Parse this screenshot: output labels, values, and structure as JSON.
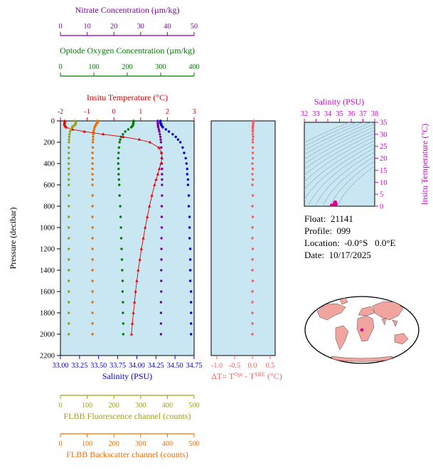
{
  "axes": {
    "nitrate": {
      "title": "Nitrate Concentration (µm/kg)",
      "ticks": [
        "0",
        "10",
        "20",
        "30",
        "40",
        "50"
      ],
      "range": [
        0,
        50
      ],
      "color": "#7f00a0"
    },
    "oxygen": {
      "title": "Optode Oxygen Concentration (µm/kg)",
      "ticks": [
        "0",
        "100",
        "200",
        "300",
        "400"
      ],
      "range": [
        0,
        400
      ],
      "color": "#007c00"
    },
    "temperature": {
      "title": "Insitu Temperature (°C)",
      "ticks": [
        "-2",
        "-1",
        "0",
        "1",
        "2",
        "3"
      ],
      "range": [
        -2,
        3
      ],
      "color": "#e80000"
    },
    "pressure": {
      "title": "Pressure (decibar)",
      "ticks": [
        "0",
        "200",
        "400",
        "600",
        "800",
        "1000",
        "1200",
        "1400",
        "1600",
        "1800",
        "2000",
        "2200"
      ],
      "range": [
        0,
        2200
      ],
      "color": "#000000"
    },
    "salinity": {
      "title": "Salinity (PSU)",
      "ticks": [
        "33.00",
        "33.25",
        "33.50",
        "33.75",
        "34.00",
        "34.25",
        "34.50",
        "34.75"
      ],
      "range": [
        33,
        34.75
      ],
      "color": "#0000cd"
    },
    "fluorescence": {
      "title": "FLBB Fluorescence channel (counts)",
      "ticks": [
        "0",
        "100",
        "200",
        "300",
        "400",
        "500"
      ],
      "range": [
        0,
        500
      ],
      "color": "#9f9f10"
    },
    "backscatter": {
      "title": "FLBB Backscatter channel (counts)",
      "ticks": [
        "0",
        "100",
        "200",
        "300",
        "400",
        "500"
      ],
      "range": [
        0,
        500
      ],
      "color": "#ef7000"
    },
    "dt": {
      "title_parts": [
        "ΔT= T",
        "Opt",
        " - T",
        "SBE",
        " (°C)"
      ],
      "ticks": [
        "-1.0",
        "-0.5",
        "0.0",
        "0.5"
      ],
      "range": [
        -1.0,
        0.5
      ],
      "color": "#f46060"
    },
    "ts_salinity": {
      "title": "Salinity (PSU)",
      "ticks": [
        "32",
        "33",
        "34",
        "35",
        "36",
        "37",
        "38"
      ],
      "range": [
        32,
        38
      ],
      "color": "#cc00cc"
    },
    "ts_temperature": {
      "title": "Insitu Temperature (°C)",
      "ticks": [
        "0",
        "5",
        "10",
        "15",
        "20",
        "25",
        "30",
        "35"
      ],
      "range": [
        0,
        35
      ],
      "color": "#cc00cc"
    }
  },
  "info": {
    "lines": [
      "Float:  21141",
      "Profile:  099",
      "Location:  -0.0°S   0.0°E",
      "Date:  10/17/2025"
    ]
  },
  "colors": {
    "plot_bg": "#c9e6f3",
    "frame": "#000000",
    "contour": "#8fb3c6",
    "ts_dots": "#dd0090",
    "land": "#f2a49e",
    "ocean": "#ffffff"
  },
  "chart_data": [
    {
      "type": "line",
      "title": "Vertical profiles vs pressure",
      "ylabel": "Pressure (decibar)",
      "ylim": [
        0,
        2200
      ],
      "pressure": [
        0,
        10,
        20,
        30,
        40,
        50,
        60,
        80,
        100,
        125,
        150,
        175,
        200,
        250,
        300,
        350,
        400,
        450,
        500,
        550,
        600,
        700,
        800,
        900,
        1000,
        1100,
        1200,
        1300,
        1400,
        1500,
        1600,
        1700,
        1800,
        1900,
        2000
      ],
      "series": [
        {
          "name": "nitrate",
          "axis": "nitrate",
          "marker": "circle",
          "xlim": [
            0,
            50
          ],
          "values": [
            36.4,
            36.4,
            36.4,
            36.5,
            36.5,
            36.5,
            36.6,
            36.8,
            37.0,
            37.2,
            37.4,
            37.5,
            37.6,
            37.7,
            37.8,
            37.9,
            37.9,
            38.0,
            38.0,
            38.0,
            38.0,
            38.0,
            37.9,
            37.9,
            37.9,
            37.8,
            37.8,
            37.8,
            37.7,
            37.7,
            37.7,
            37.6,
            37.6,
            37.6,
            37.6
          ]
        },
        {
          "name": "oxygen",
          "axis": "oxygen",
          "marker": "circle",
          "xlim": [
            0,
            400
          ],
          "values": [
            219,
            219,
            218,
            218,
            217,
            215,
            212,
            203,
            194,
            187,
            182,
            179,
            177,
            175,
            174,
            173,
            173,
            174,
            174,
            175,
            176,
            177,
            179,
            180,
            181,
            182,
            183,
            184,
            185,
            186,
            186,
            187,
            187,
            188,
            188
          ]
        },
        {
          "name": "temperature",
          "axis": "temperature",
          "marker": "triangle",
          "line": true,
          "xlim": [
            -2,
            3
          ],
          "values": [
            -1.84,
            -1.84,
            -1.85,
            -1.85,
            -1.84,
            -1.82,
            -1.78,
            -1.55,
            -1.1,
            -0.4,
            0.35,
            0.95,
            1.35,
            1.68,
            1.78,
            1.8,
            1.76,
            1.7,
            1.64,
            1.58,
            1.52,
            1.42,
            1.33,
            1.25,
            1.17,
            1.1,
            1.03,
            0.97,
            0.91,
            0.86,
            0.81,
            0.77,
            0.73,
            0.69,
            0.66
          ]
        },
        {
          "name": "salinity",
          "axis": "salinity",
          "marker": "circle",
          "xlim": [
            33,
            34.75
          ],
          "values": [
            34.31,
            34.31,
            34.31,
            34.32,
            34.32,
            34.33,
            34.34,
            34.38,
            34.42,
            34.47,
            34.51,
            34.54,
            34.57,
            34.6,
            34.62,
            34.64,
            34.65,
            34.66,
            34.66,
            34.67,
            34.67,
            34.68,
            34.68,
            34.69,
            34.69,
            34.69,
            34.7,
            34.7,
            34.7,
            34.7,
            34.71,
            34.71,
            34.71,
            34.71,
            34.71
          ]
        },
        {
          "name": "fluorescence",
          "axis": "fluorescence",
          "marker": "circle",
          "xlim": [
            0,
            500
          ],
          "values": [
            52,
            56,
            58,
            57,
            53,
            48,
            44,
            39,
            36,
            34,
            33,
            32,
            32,
            31,
            31,
            31,
            31,
            31,
            31,
            31,
            31,
            31,
            31,
            31,
            31,
            31,
            31,
            31,
            31,
            31,
            31,
            31,
            31,
            31,
            31
          ]
        },
        {
          "name": "backscatter",
          "axis": "backscatter",
          "marker": "circle",
          "xlim": [
            0,
            500
          ],
          "values": [
            138,
            140,
            137,
            134,
            132,
            130,
            128,
            126,
            124,
            123,
            122,
            122,
            121,
            121,
            120,
            120,
            120,
            120,
            120,
            120,
            120,
            120,
            120,
            120,
            120,
            120,
            120,
            120,
            120,
            120,
            120,
            120,
            120,
            120,
            120
          ]
        }
      ]
    },
    {
      "type": "scatter",
      "title": "Optode minus SBE temperature difference",
      "xlabel": "ΔT= TOpt - TSBE (°C)",
      "xlim": [
        -1.0,
        0.5
      ],
      "ylim": [
        0,
        2200
      ],
      "values": [
        0.04,
        0.03,
        0.02,
        0.02,
        0.02,
        0.01,
        0.01,
        0.01,
        0.01,
        0.01,
        0.02,
        0.01,
        0.01,
        0.01,
        0.01,
        0.01,
        0.0,
        0.01,
        0.0,
        0.01,
        0.0,
        0.01,
        0.0,
        0.01,
        0.0,
        0.0,
        0.01,
        0.0,
        0.0,
        0.01,
        0.0,
        0.0,
        0.0,
        0.0,
        0.0
      ]
    },
    {
      "type": "scatter",
      "title": "T-S diagram",
      "xlabel": "Salinity (PSU)",
      "ylabel": "Insitu Temperature (°C)",
      "xlim": [
        32,
        38
      ],
      "ylim": [
        0,
        35
      ],
      "derived_from": [
        "salinity",
        "temperature"
      ]
    }
  ]
}
